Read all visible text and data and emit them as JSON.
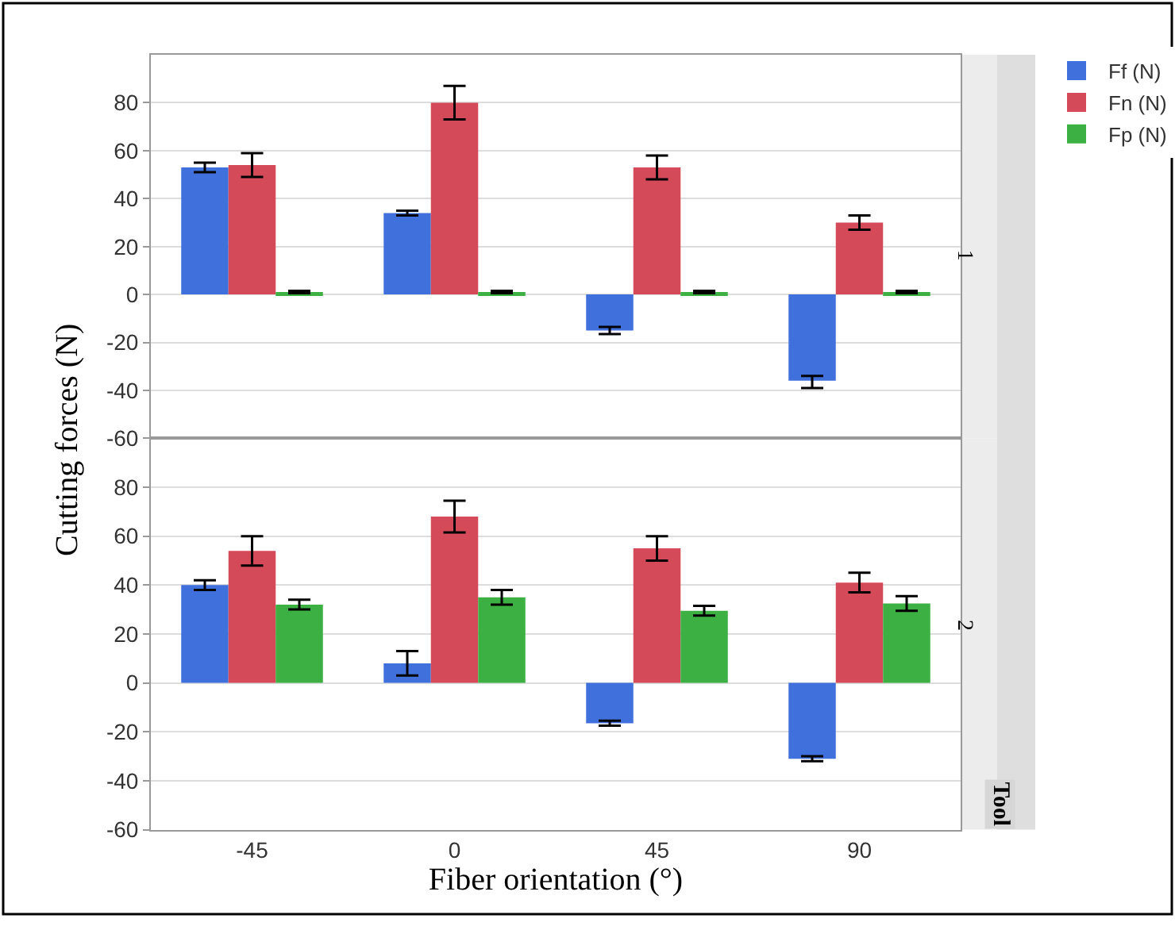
{
  "chart_data": [
    {
      "type": "bar",
      "ylabel": "Cutting forces (N)",
      "categories": [
        "-45",
        "0",
        "45",
        "90"
      ],
      "ylim": [
        -60,
        100
      ],
      "yticks": [
        -60,
        -40,
        -20,
        0,
        20,
        40,
        60,
        80
      ],
      "grid": "y",
      "legend": "top right",
      "tick_labels": "y",
      "annotations": [
        "1",
        "Tool"
      ],
      "series": [
        {
          "name": "Ff (N)",
          "color": "#4070dc",
          "values": [
            53,
            34,
            -15,
            -36
          ],
          "errors": [
            2,
            1,
            1.5,
            [
              -34,
              -39
            ]
          ]
        },
        {
          "name": "Fn (N)",
          "color": "#d44a58",
          "values": [
            54,
            80,
            53,
            30
          ],
          "errors": [
            5,
            7,
            5,
            3
          ]
        },
        {
          "name": "Fp (N)",
          "color": "#3cb043",
          "values": [
            1,
            1,
            1,
            1
          ],
          "errors": [
            0.5,
            0.5,
            0.5,
            0.5
          ]
        }
      ]
    },
    {
      "type": "bar",
      "xlabel": "Fiber orientation (°)",
      "categories": [
        "-45",
        "0",
        "45",
        "90"
      ],
      "ylim": [
        -60,
        100
      ],
      "yticks": [
        -60,
        -40,
        -20,
        0,
        20,
        40,
        60,
        80
      ],
      "grid": "y",
      "annotations": [
        "2"
      ],
      "series": [
        {
          "color": "#4070dc",
          "values": [
            40,
            8,
            -16.5,
            -31
          ],
          "errors": [
            2,
            5,
            1,
            1
          ]
        },
        {
          "color": "#d44a58",
          "values": [
            54,
            68,
            55,
            41
          ],
          "errors": [
            6,
            6.5,
            5,
            4
          ]
        },
        {
          "color": "#3cb043",
          "values": [
            32,
            35,
            29.5,
            32.5
          ],
          "errors": [
            2,
            3,
            2,
            3
          ]
        }
      ]
    }
  ]
}
